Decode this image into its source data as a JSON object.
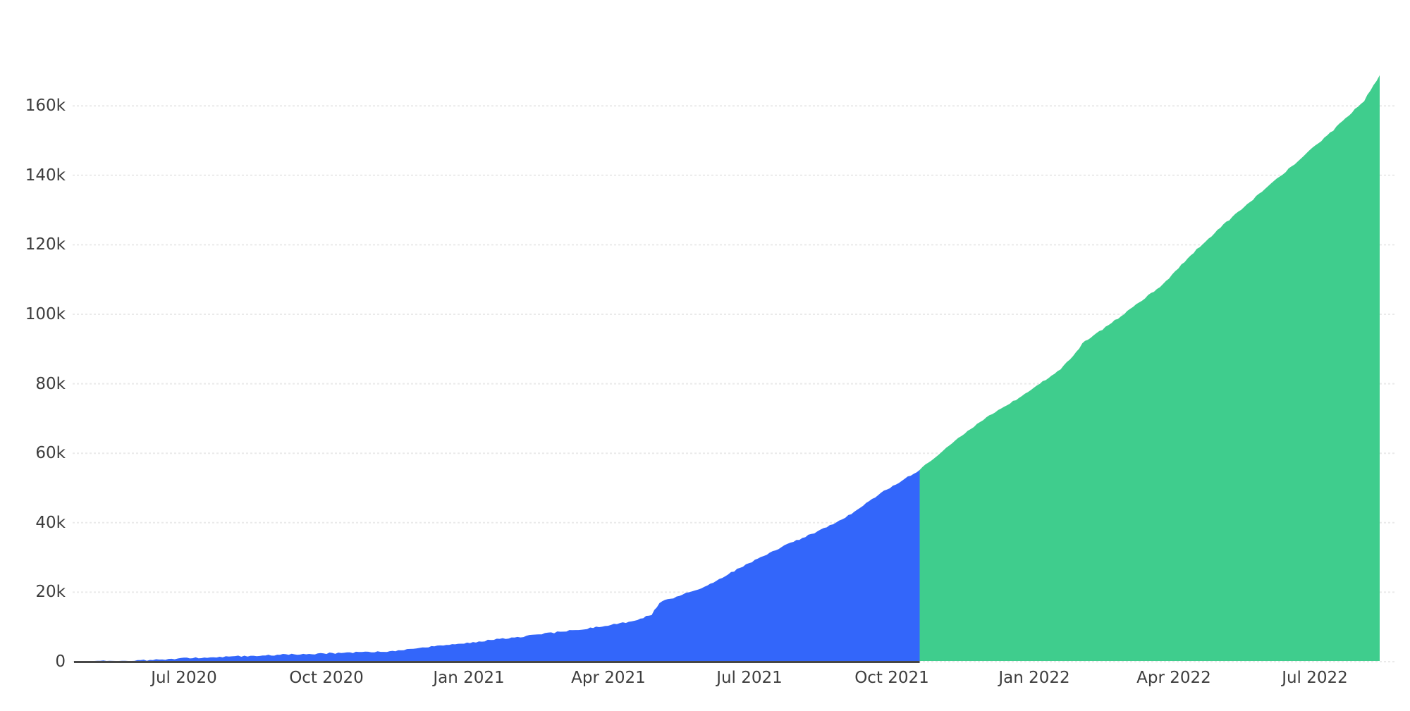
{
  "chart_data": {
    "type": "area",
    "title": "",
    "xlabel": "",
    "ylabel": "",
    "grid": true,
    "legend": false,
    "xlim": [
      "2020-04-21",
      "2022-08-12"
    ],
    "ylim": [
      0,
      172000
    ],
    "y_axis": {
      "tick_values": [
        0,
        20000,
        40000,
        60000,
        80000,
        100000,
        120000,
        140000,
        160000
      ],
      "tick_labels": [
        "0",
        "20k",
        "40k",
        "60k",
        "80k",
        "100k",
        "120k",
        "140k",
        "160k"
      ]
    },
    "x_axis": {
      "tick_dates": [
        "2020-07-01",
        "2020-10-01",
        "2021-01-01",
        "2021-04-01",
        "2021-07-01",
        "2021-10-01",
        "2022-01-01",
        "2022-04-01",
        "2022-07-01"
      ],
      "tick_labels": [
        "Jul 2020",
        "Oct 2020",
        "Jan 2021",
        "Apr 2021",
        "Jul 2021",
        "Oct 2021",
        "Jan 2022",
        "Apr 2022",
        "Jul 2022"
      ]
    },
    "colors": {
      "blue_fill": "#3366fa",
      "green_fill": "#3fcd8d",
      "gridline": "#eaeaea",
      "tick_text": "#3d3d3d",
      "baseline_dark": "#474747",
      "background": "#ffffff"
    },
    "series": [
      {
        "name": "blue",
        "color": "#3366fa",
        "points": [
          [
            "2020-04-21",
            50
          ],
          [
            "2020-05-08",
            120
          ],
          [
            "2020-05-22",
            250
          ],
          [
            "2020-06-05",
            400
          ],
          [
            "2020-06-19",
            650
          ],
          [
            "2020-07-01",
            950
          ],
          [
            "2020-07-16",
            1200
          ],
          [
            "2020-08-01",
            1500
          ],
          [
            "2020-08-17",
            1750
          ],
          [
            "2020-09-01",
            2000
          ],
          [
            "2020-09-16",
            2200
          ],
          [
            "2020-10-01",
            2400
          ],
          [
            "2020-10-20",
            2650
          ],
          [
            "2020-11-09",
            2900
          ],
          [
            "2020-11-20",
            3400
          ],
          [
            "2020-12-02",
            4050
          ],
          [
            "2020-12-25",
            5050
          ],
          [
            "2021-01-17",
            6300
          ],
          [
            "2021-02-09",
            7500
          ],
          [
            "2021-03-03",
            8700
          ],
          [
            "2021-03-26",
            10000
          ],
          [
            "2021-04-18",
            11800
          ],
          [
            "2021-04-29",
            13600
          ],
          [
            "2021-05-04",
            17000
          ],
          [
            "2021-05-11",
            18100
          ],
          [
            "2021-06-02",
            21500
          ],
          [
            "2021-06-25",
            27000
          ],
          [
            "2021-07-18",
            32200
          ],
          [
            "2021-08-10",
            36700
          ],
          [
            "2021-09-01",
            41400
          ],
          [
            "2021-09-24",
            48500
          ],
          [
            "2021-10-19",
            55200
          ]
        ]
      },
      {
        "name": "green",
        "color": "#3fcd8d",
        "points": [
          [
            "2021-10-19",
            55200
          ],
          [
            "2021-11-09",
            63000
          ],
          [
            "2021-12-01",
            70200
          ],
          [
            "2021-12-24",
            76500
          ],
          [
            "2022-01-16",
            83400
          ],
          [
            "2022-01-28",
            89000
          ],
          [
            "2022-02-01",
            91600
          ],
          [
            "2022-02-08",
            93700
          ],
          [
            "2022-03-02",
            100800
          ],
          [
            "2022-03-25",
            108500
          ],
          [
            "2022-04-12",
            117000
          ],
          [
            "2022-05-05",
            126500
          ],
          [
            "2022-05-28",
            135300
          ],
          [
            "2022-06-20",
            144000
          ],
          [
            "2022-07-13",
            153000
          ],
          [
            "2022-08-02",
            161500
          ],
          [
            "2022-08-12",
            168800
          ]
        ]
      }
    ]
  }
}
